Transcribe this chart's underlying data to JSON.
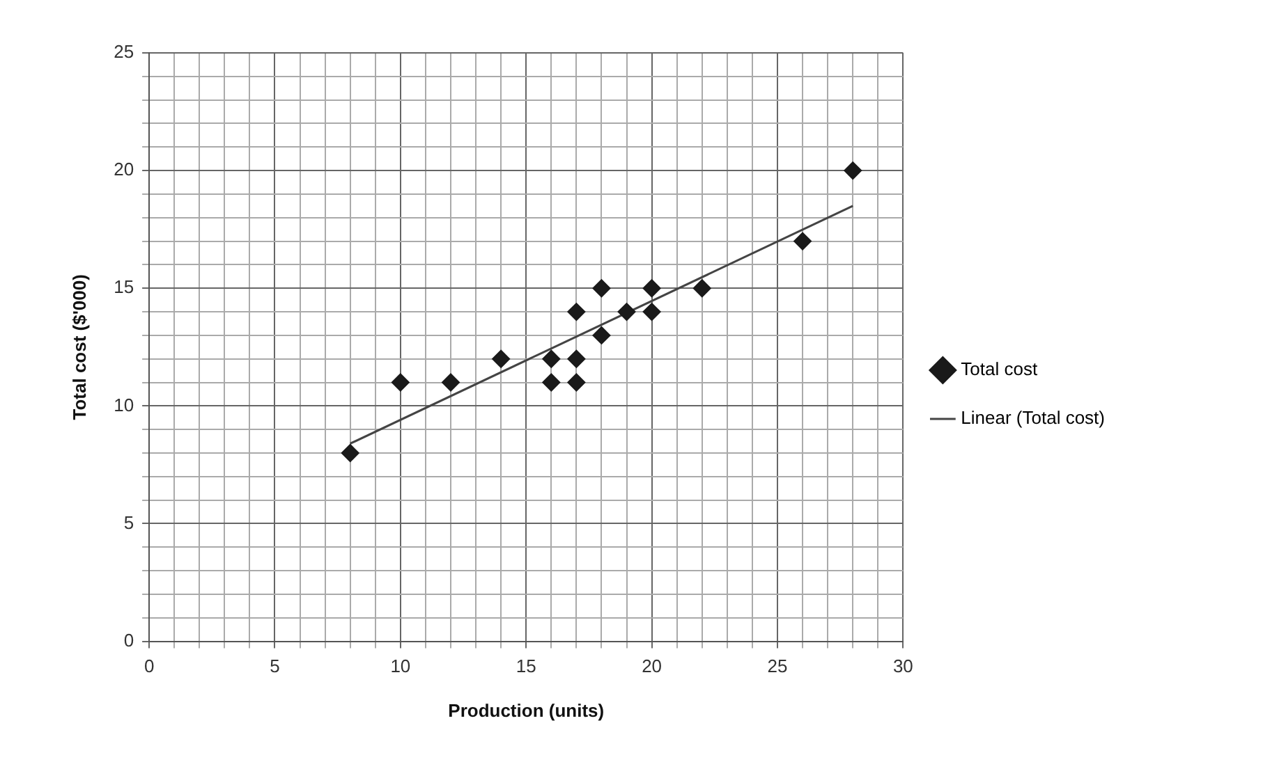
{
  "chart_data": {
    "type": "scatter",
    "xlabel": "Production (units)",
    "ylabel": "Total cost ($'000)",
    "xlim": [
      0,
      30
    ],
    "ylim": [
      0,
      25
    ],
    "xticks": [
      0,
      {
        "value": 1,
        "label": null
      },
      {
        "value": 2,
        "label": null
      },
      {
        "value": 3,
        "label": null
      },
      {
        "value": 4,
        "label": null
      },
      5,
      {
        "value": 6,
        "label": null
      },
      {
        "value": 7,
        "label": null
      },
      {
        "value": 8,
        "label": null
      },
      {
        "value": 9,
        "label": null
      },
      10,
      {
        "value": 11,
        "label": null
      },
      {
        "value": 12,
        "label": null
      },
      {
        "value": 13,
        "label": null
      },
      {
        "value": 14,
        "label": null
      },
      15,
      {
        "value": 16,
        "label": null
      },
      {
        "value": 17,
        "label": null
      },
      {
        "value": 18,
        "label": null
      },
      {
        "value": 19,
        "label": null
      },
      20,
      {
        "value": 21,
        "label": null
      },
      {
        "value": 22,
        "label": null
      },
      {
        "value": 23,
        "label": null
      },
      {
        "value": 24,
        "label": null
      },
      25,
      {
        "value": 26,
        "label": null
      },
      {
        "value": 27,
        "label": null
      },
      {
        "value": 28,
        "label": null
      },
      {
        "value": 29,
        "label": null
      },
      30
    ],
    "yticks": [
      0,
      {
        "value": 1,
        "label": null
      },
      {
        "value": 2,
        "label": null
      },
      {
        "value": 3,
        "label": null
      },
      {
        "value": 4,
        "label": null
      },
      5,
      {
        "value": 6,
        "label": null
      },
      {
        "value": 7,
        "label": null
      },
      {
        "value": 8,
        "label": null
      },
      {
        "value": 9,
        "label": null
      },
      10,
      {
        "value": 11,
        "label": null
      },
      {
        "value": 12,
        "label": null
      },
      {
        "value": 13,
        "label": null
      },
      {
        "value": 14,
        "label": null
      },
      15,
      {
        "value": 16,
        "label": null
      },
      {
        "value": 17,
        "label": null
      },
      {
        "value": 18,
        "label": null
      },
      {
        "value": 19,
        "label": null
      },
      20,
      {
        "value": 21,
        "label": null
      },
      {
        "value": 22,
        "label": null
      },
      {
        "value": 23,
        "label": null
      },
      {
        "value": 24,
        "label": null
      },
      25
    ],
    "grid": true,
    "legend": "right",
    "series": [
      {
        "name": "Total cost",
        "marker": "diamond",
        "color": "#1a1a1a",
        "x": [
          8,
          10,
          12,
          14,
          16,
          16,
          17,
          17,
          17,
          18,
          18,
          19,
          20,
          20,
          22,
          26,
          28
        ],
        "values": [
          8,
          11,
          11,
          12,
          12,
          11,
          14,
          12,
          11,
          15,
          13,
          14,
          15,
          14,
          15,
          17,
          20
        ]
      },
      {
        "name": "Linear (Total cost)",
        "type": "line",
        "marker": "none",
        "line_style": "solid",
        "color": "#444444",
        "x": [
          8,
          28
        ],
        "values": [
          8.4,
          18.5
        ]
      }
    ]
  }
}
